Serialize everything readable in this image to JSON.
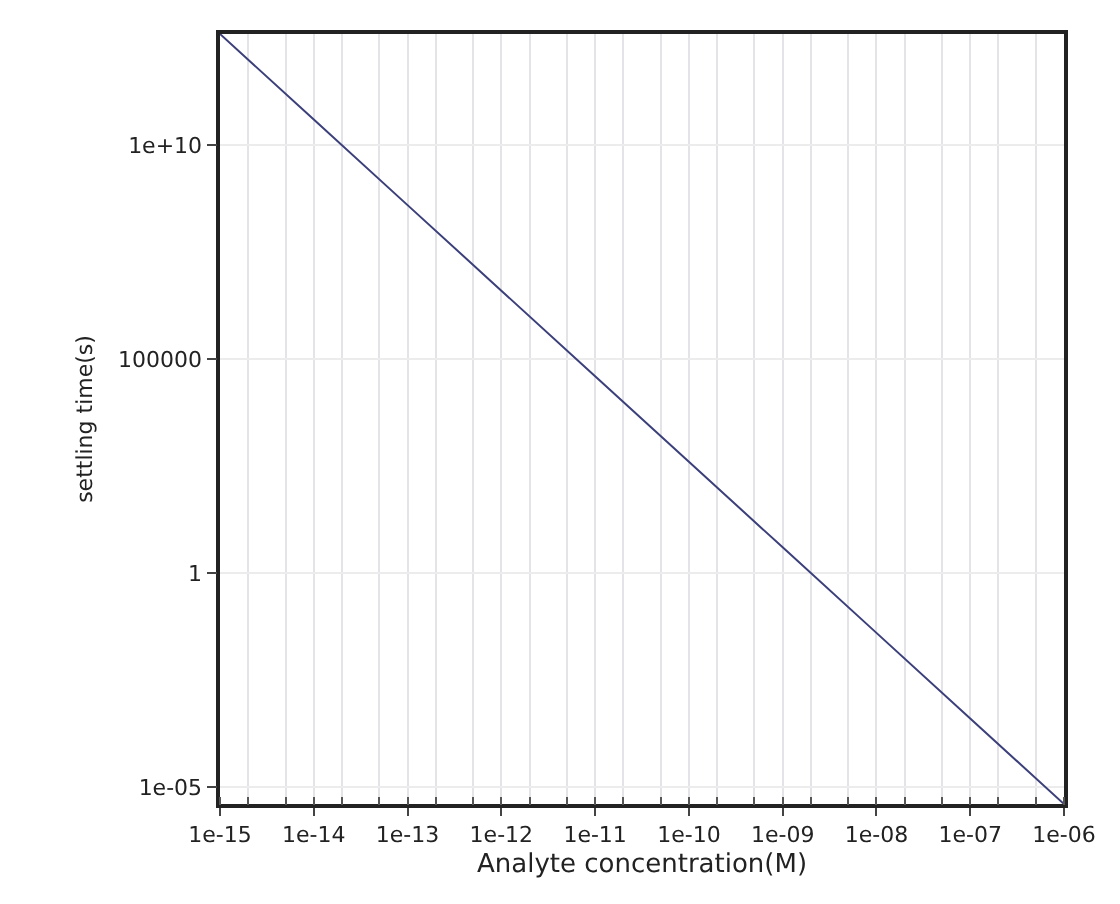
{
  "chart_data": {
    "type": "line",
    "xlabel": "Analyte concentration(M)",
    "ylabel": "settling time(s)",
    "log": "xy",
    "grid": true,
    "marker": "none",
    "line_style": "solid",
    "x": [
      1e-15,
      1e-14,
      1e-13,
      1e-12,
      1e-11,
      1e-10,
      1e-09,
      1e-08,
      1e-07,
      1e-06
    ],
    "series": [
      {
        "color": "#3b3f7a",
        "values": [
          4000000000000.0,
          40000000000.0,
          400000000.0,
          4000000.0,
          40000.0,
          400,
          4,
          0.04,
          0.0004,
          4e-06
        ]
      }
    ],
    "xlim": [
      1e-15,
      1e-06
    ],
    "ylim": [
      4e-06,
      4000000000000.0
    ],
    "xticks": [
      {
        "value": 1e-15,
        "label": "1e-15"
      },
      {
        "value": 1e-14,
        "label": "1e-14"
      },
      {
        "value": 1e-13,
        "label": "1e-13"
      },
      {
        "value": 1e-12,
        "label": "1e-12"
      },
      {
        "value": 1e-11,
        "label": "1e-11"
      },
      {
        "value": 1e-10,
        "label": "1e-10"
      },
      {
        "value": 1e-09,
        "label": "1e-09"
      },
      {
        "value": 1e-08,
        "label": "1e-08"
      },
      {
        "value": 1e-07,
        "label": "1e-07"
      },
      {
        "value": 1e-06,
        "label": "1e-06"
      }
    ],
    "yticks": [
      {
        "value": 1e-05,
        "label": "1e-05"
      },
      1,
      100000,
      {
        "value": 10000000000.0,
        "label": "1e+10"
      }
    ]
  }
}
